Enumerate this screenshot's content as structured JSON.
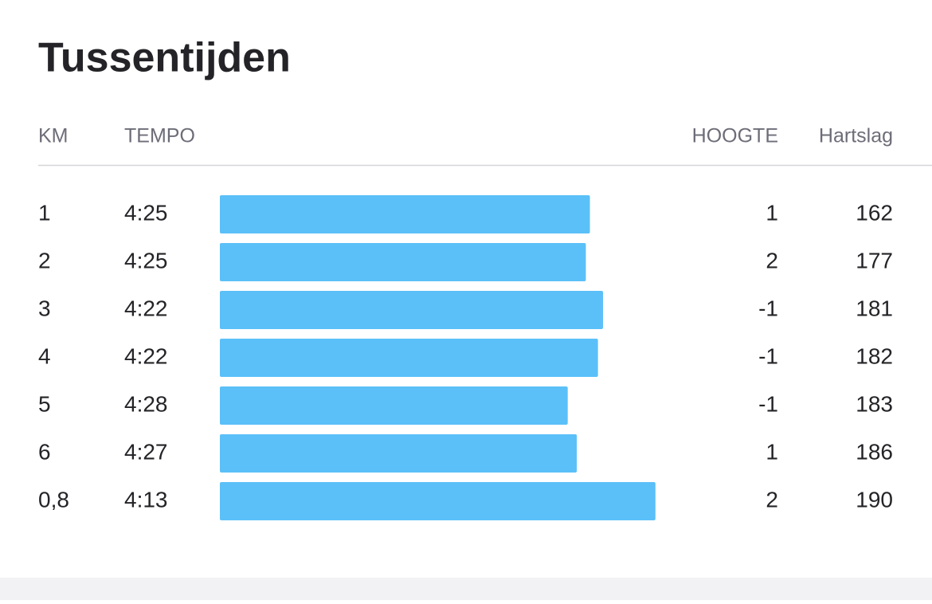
{
  "header": {
    "title": "Tussentijden"
  },
  "table": {
    "columns": [
      "KM",
      "TEMPO",
      "HOOGTE",
      "Hartslag"
    ],
    "bar_xlim": [
      9.91,
      14.5
    ],
    "rows": [
      {
        "km": "1",
        "tempo": "4:25",
        "speed": 13.58,
        "hoogte": 1,
        "hartslag": 162
      },
      {
        "km": "2",
        "tempo": "4:25",
        "speed": 13.54,
        "hoogte": 2,
        "hartslag": 177
      },
      {
        "km": "3",
        "tempo": "4:22",
        "speed": 13.71,
        "hoogte": -1,
        "hartslag": 181
      },
      {
        "km": "4",
        "tempo": "4:22",
        "speed": 13.66,
        "hoogte": -1,
        "hartslag": 182
      },
      {
        "km": "5",
        "tempo": "4:28",
        "speed": 13.36,
        "hoogte": -1,
        "hartslag": 183
      },
      {
        "km": "6",
        "tempo": "4:27",
        "speed": 13.45,
        "hoogte": 1,
        "hartslag": 186
      },
      {
        "km": "0,8",
        "tempo": "4:13",
        "speed": 14.23,
        "hoogte": 2,
        "hartslag": 190
      }
    ]
  }
}
